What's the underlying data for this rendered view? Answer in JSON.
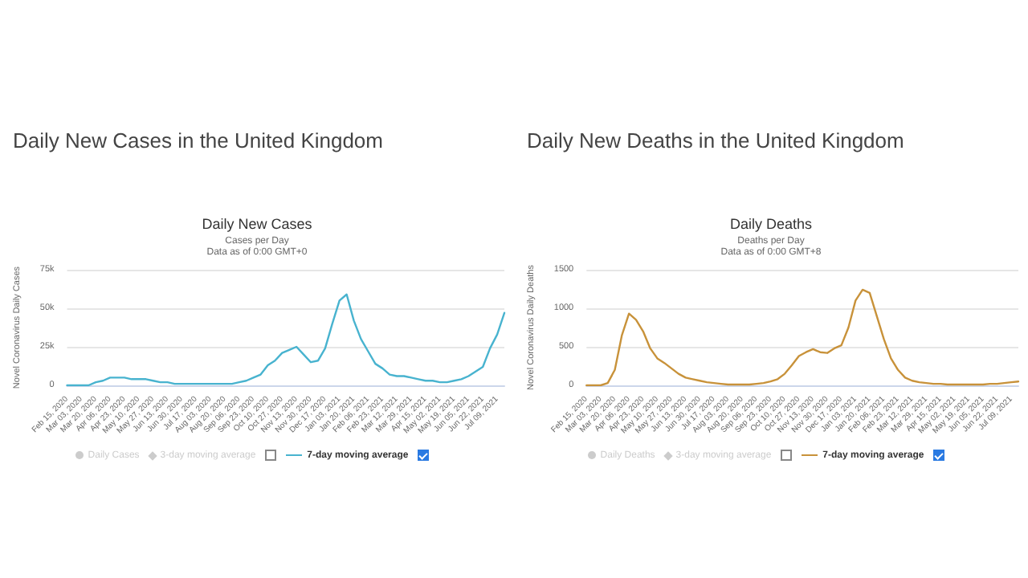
{
  "chart_data": [
    {
      "type": "line",
      "title": "Daily New Cases in the United Kingdom",
      "subtitle": "Daily New Cases",
      "annotations": [
        "Cases per Day",
        "Data as of 0:00 GMT+0",
        "Daily Cases",
        "3-day moving average"
      ],
      "ylabel": "Novel Coronavirus Daily Cases",
      "categories": [
        "Feb 15, 2020",
        null,
        "Mar 03, 2020",
        null,
        "Mar 20, 2020",
        null,
        "Apr 06, 2020",
        null,
        "Apr 23, 2020",
        null,
        "May 10, 2020",
        null,
        "May 27, 2020",
        null,
        "Jun 13, 2020",
        null,
        "Jun 30, 2020",
        null,
        "Jul 17, 2020",
        null,
        "Aug 03, 2020",
        null,
        "Aug 20, 2020",
        null,
        "Sep 06, 2020",
        null,
        "Sep 23, 2020",
        null,
        "Oct 10, 2020",
        null,
        "Oct 27, 2020",
        null,
        "Nov 13, 2020",
        null,
        "Nov 30, 2020",
        null,
        "Dec 17, 2020",
        null,
        "Jan 03, 2021",
        null,
        "Jan 20, 2021",
        null,
        "Feb 06, 2021",
        null,
        "Feb 23, 2021",
        null,
        "Mar 12, 2021",
        null,
        "Mar 29, 2021",
        null,
        "Apr 15, 2021",
        null,
        "May 02, 2021",
        null,
        "May 19, 2021",
        null,
        "Jun 05, 2021",
        null,
        "Jun 22, 2021",
        null,
        "Jul 09, 2021",
        null
      ],
      "series": [
        {
          "name": "7-day moving average",
          "color": "#48b3cf",
          "values": [
            0,
            0,
            0,
            0,
            2000,
            3000,
            5000,
            5000,
            5000,
            4000,
            4000,
            4000,
            3000,
            2000,
            2000,
            1000,
            1000,
            1000,
            1000,
            1000,
            1000,
            1000,
            1000,
            1000,
            2000,
            3000,
            5000,
            7000,
            13000,
            16000,
            21000,
            23000,
            25000,
            20000,
            15000,
            16000,
            24000,
            40000,
            55000,
            59000,
            42000,
            30000,
            22000,
            14000,
            11000,
            7000,
            6000,
            6000,
            5000,
            4000,
            3000,
            3000,
            2000,
            2000,
            3000,
            4000,
            6000,
            9000,
            12000,
            24000,
            33000,
            47000
          ]
        }
      ],
      "ylim": [
        0,
        75000
      ],
      "yticks": [
        0,
        {
          "value": 25000,
          "label": "25k"
        },
        {
          "value": 50000,
          "label": "50k"
        },
        {
          "value": 75000,
          "label": "75k"
        }
      ],
      "grid": "y",
      "legend": "bottom",
      "marker": "none",
      "line_style": "solid"
    },
    {
      "type": "line",
      "title": "Daily New Deaths in the United Kingdom",
      "subtitle": "Daily Deaths",
      "annotations": [
        "Deaths per Day",
        "Data as of 0:00 GMT+8",
        "Daily Deaths",
        "3-day moving average"
      ],
      "ylabel": "Novel Coronavirus Daily Deaths",
      "categories": [
        "Feb 15, 2020",
        null,
        "Mar 03, 2020",
        null,
        "Mar 20, 2020",
        null,
        "Apr 06, 2020",
        null,
        "Apr 23, 2020",
        null,
        "May 10, 2020",
        null,
        "May 27, 2020",
        null,
        "Jun 13, 2020",
        null,
        "Jun 30, 2020",
        null,
        "Jul 17, 2020",
        null,
        "Aug 03, 2020",
        null,
        "Aug 20, 2020",
        null,
        "Sep 06, 2020",
        null,
        "Sep 23, 2020",
        null,
        "Oct 10, 2020",
        null,
        "Oct 27, 2020",
        null,
        "Nov 13, 2020",
        null,
        "Nov 30, 2020",
        null,
        "Dec 17, 2020",
        null,
        "Jan 03, 2021",
        null,
        "Jan 20, 2021",
        null,
        "Feb 06, 2021",
        null,
        "Feb 23, 2021",
        null,
        "Mar 12, 2021",
        null,
        "Mar 29, 2021",
        null,
        "Apr 15, 2021",
        null,
        "May 02, 2021",
        null,
        "May 19, 2021",
        null,
        "Jun 05, 2021",
        null,
        "Jun 22, 2021",
        null,
        "Jul 09, 2021",
        null
      ],
      "series": [
        {
          "name": "7-day moving average",
          "color": "#c8923a",
          "values": [
            0,
            0,
            0,
            30,
            200,
            650,
            930,
            850,
            700,
            480,
            350,
            290,
            220,
            150,
            100,
            80,
            60,
            40,
            30,
            20,
            10,
            10,
            10,
            10,
            20,
            30,
            50,
            80,
            150,
            260,
            380,
            430,
            470,
            430,
            420,
            480,
            520,
            750,
            1100,
            1240,
            1200,
            900,
            600,
            350,
            200,
            100,
            60,
            40,
            30,
            20,
            20,
            10,
            10,
            10,
            10,
            10,
            10,
            20,
            20,
            30,
            40,
            50
          ]
        }
      ],
      "ylim": [
        0,
        1500
      ],
      "yticks": [
        0,
        500,
        1000,
        1500
      ],
      "grid": "y",
      "legend": "bottom",
      "marker": "none",
      "line_style": "solid"
    }
  ]
}
